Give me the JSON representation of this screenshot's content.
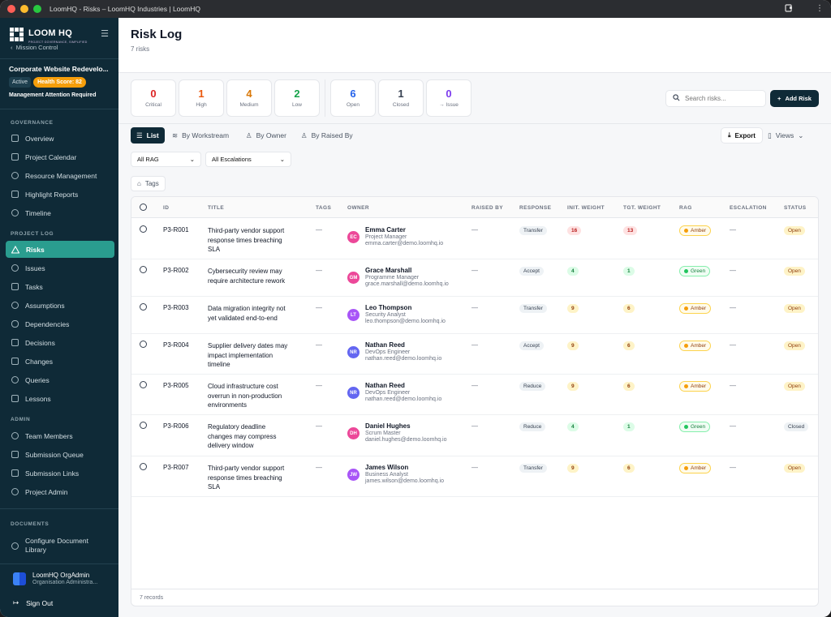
{
  "window": {
    "title": "LoomHQ - Risks – LoomHQ Industries | LoomHQ"
  },
  "sidebar": {
    "logo": "LOOM HQ",
    "logo_sub": "PROJECT GOVERNANCE, SIMPLIFIED",
    "back": "Mission Control",
    "project_name": "Corporate Website Redevelo...",
    "status_badge": "Active",
    "health_badge": "Health Score: 82",
    "attention": "Management Attention Required",
    "sections": {
      "governance": "GOVERNANCE",
      "project_log": "PROJECT LOG",
      "admin": "ADMIN",
      "documents": "DOCUMENTS"
    },
    "governance_items": [
      "Overview",
      "Project Calendar",
      "Resource Management",
      "Highlight Reports",
      "Timeline"
    ],
    "log_items": [
      "Risks",
      "Issues",
      "Tasks",
      "Assumptions",
      "Dependencies",
      "Decisions",
      "Changes",
      "Queries",
      "Lessons"
    ],
    "admin_items": [
      "Team Members",
      "Submission Queue",
      "Submission Links",
      "Project Admin"
    ],
    "documents_items": [
      "Configure Document Library"
    ],
    "user_name": "LoomHQ OrgAdmin",
    "user_role": "Organisation Administra...",
    "signout": "Sign Out"
  },
  "header": {
    "title": "Risk Log",
    "count": "7 risks"
  },
  "stats": [
    {
      "value": "0",
      "label": "Critical",
      "color": "#dc2626"
    },
    {
      "value": "1",
      "label": "High",
      "color": "#ea580c"
    },
    {
      "value": "4",
      "label": "Medium",
      "color": "#d97706"
    },
    {
      "value": "2",
      "label": "Low",
      "color": "#16a34a"
    },
    {
      "value": "6",
      "label": "Open",
      "color": "#2563eb"
    },
    {
      "value": "1",
      "label": "Closed",
      "color": "#374151"
    },
    {
      "value": "0",
      "label": "→ Issue",
      "color": "#7c3aed"
    }
  ],
  "search": {
    "placeholder": "Search risks..."
  },
  "add_button": "Add Risk",
  "views_tabs": [
    "List",
    "By Workstream",
    "By Owner",
    "By Raised By"
  ],
  "export": "Export",
  "views": "Views",
  "filters": {
    "rag": "All RAG",
    "escalation": "All Escalations",
    "tags": "Tags"
  },
  "table": {
    "columns": [
      "ID",
      "TITLE",
      "TAGS",
      "OWNER",
      "RAISED BY",
      "RESPONSE",
      "INIT. WEIGHT",
      "TGT. WEIGHT",
      "RAG",
      "ESCALATION",
      "STATUS"
    ],
    "rows": [
      {
        "id": "P3-R001",
        "title": [
          "Third-party vendor support",
          "response times breaching",
          "SLA"
        ],
        "tags": "—",
        "initials": "EC",
        "avatar_color": "#ec4899",
        "owner": "Emma Carter",
        "role": "Project Manager",
        "email": "emma.carter@demo.loomhq.io",
        "raised_by": "—",
        "response": "Transfer",
        "init_weight": "16",
        "tgt_weight": "13",
        "rag": "Amber",
        "escalation": "—",
        "status": "Open"
      },
      {
        "id": "P3-R002",
        "title": [
          "Cybersecurity review may",
          "require architecture rework"
        ],
        "tags": "—",
        "initials": "GM",
        "avatar_color": "#ec4899",
        "owner": "Grace Marshall",
        "role": "Programme Manager",
        "email": "grace.marshall@demo.loomhq.io",
        "raised_by": "—",
        "response": "Accept",
        "init_weight": "4",
        "tgt_weight": "1",
        "rag": "Green",
        "escalation": "—",
        "status": "Open"
      },
      {
        "id": "P3-R003",
        "title": [
          "Data migration integrity not",
          "yet validated end-to-end"
        ],
        "tags": "—",
        "initials": "LT",
        "avatar_color": "#a855f7",
        "owner": "Leo Thompson",
        "role": "Security Analyst",
        "email": "leo.thompson@demo.loomhq.io",
        "raised_by": "—",
        "response": "Transfer",
        "init_weight": "9",
        "tgt_weight": "6",
        "rag": "Amber",
        "escalation": "—",
        "status": "Open"
      },
      {
        "id": "P3-R004",
        "title": [
          "Supplier delivery dates may",
          "impact implementation",
          "timeline"
        ],
        "tags": "—",
        "initials": "NR",
        "avatar_color": "#6366f1",
        "owner": "Nathan Reed",
        "role": "DevOps Engineer",
        "email": "nathan.reed@demo.loomhq.io",
        "raised_by": "—",
        "response": "Accept",
        "init_weight": "9",
        "tgt_weight": "6",
        "rag": "Amber",
        "escalation": "—",
        "status": "Open"
      },
      {
        "id": "P3-R005",
        "title": [
          "Cloud infrastructure cost",
          "overrun in non-production",
          "environments"
        ],
        "tags": "—",
        "initials": "NR",
        "avatar_color": "#6366f1",
        "owner": "Nathan Reed",
        "role": "DevOps Engineer",
        "email": "nathan.reed@demo.loomhq.io",
        "raised_by": "—",
        "response": "Reduce",
        "init_weight": "9",
        "tgt_weight": "6",
        "rag": "Amber",
        "escalation": "—",
        "status": "Open"
      },
      {
        "id": "P3-R006",
        "title": [
          "Regulatory deadline",
          "changes may compress",
          "delivery window"
        ],
        "tags": "—",
        "initials": "DH",
        "avatar_color": "#ec4899",
        "owner": "Daniel Hughes",
        "role": "Scrum Master",
        "email": "daniel.hughes@demo.loomhq.io",
        "raised_by": "—",
        "response": "Reduce",
        "init_weight": "4",
        "tgt_weight": "1",
        "rag": "Green",
        "escalation": "—",
        "status": "Closed"
      },
      {
        "id": "P3-R007",
        "title": [
          "Third-party vendor support",
          "response times breaching",
          "SLA"
        ],
        "tags": "—",
        "initials": "JW",
        "avatar_color": "#a855f7",
        "owner": "James Wilson",
        "role": "Business Analyst",
        "email": "james.wilson@demo.loomhq.io",
        "raised_by": "—",
        "response": "Transfer",
        "init_weight": "9",
        "tgt_weight": "6",
        "rag": "Amber",
        "escalation": "—",
        "status": "Open"
      }
    ],
    "footer": "7 records"
  }
}
